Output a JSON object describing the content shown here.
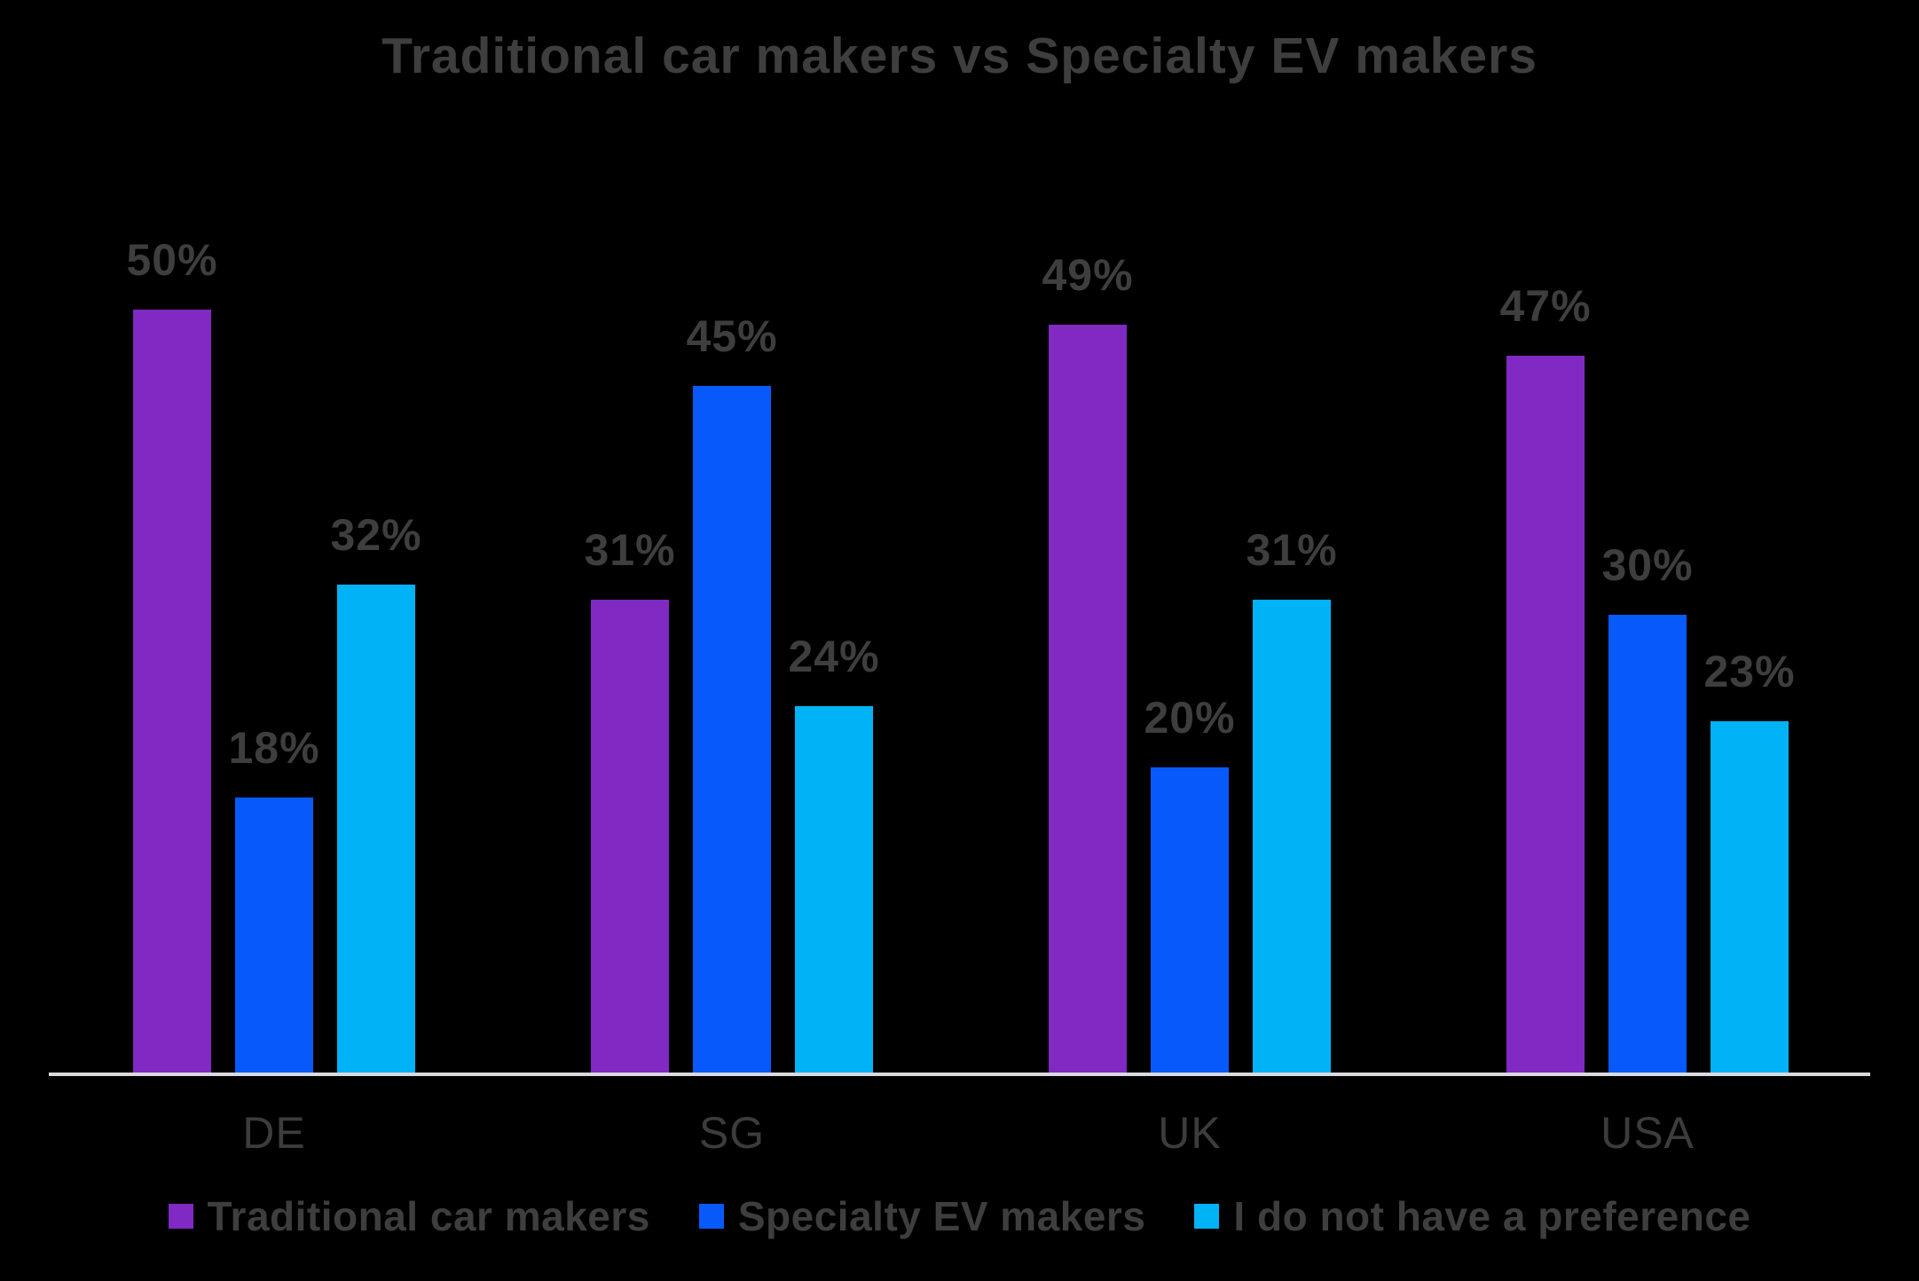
{
  "title": "Traditional car makers vs Specialty EV makers",
  "colors": {
    "background": "#000000",
    "text": "#3e3e3e",
    "axis_line": "#d9d9de"
  },
  "chart_data": {
    "type": "bar",
    "title": "Traditional car makers vs Specialty EV makers",
    "categories": [
      "DE",
      "SG",
      "UK",
      "USA"
    ],
    "series": [
      {
        "name": "Traditional car makers",
        "color": "#8129c3",
        "values": [
          50,
          31,
          49,
          47
        ]
      },
      {
        "name": "Specialty EV makers",
        "color": "#0759fa",
        "values": [
          18,
          45,
          20,
          30
        ]
      },
      {
        "name": "I do not have a preference",
        "color": "#00b2f6",
        "values": [
          32,
          24,
          31,
          23
        ]
      }
    ],
    "value_suffix": "%",
    "xlabel": "",
    "ylabel": "",
    "ylim": [
      0,
      55
    ],
    "grid": false,
    "data_labels": true,
    "legend_position": "bottom"
  }
}
